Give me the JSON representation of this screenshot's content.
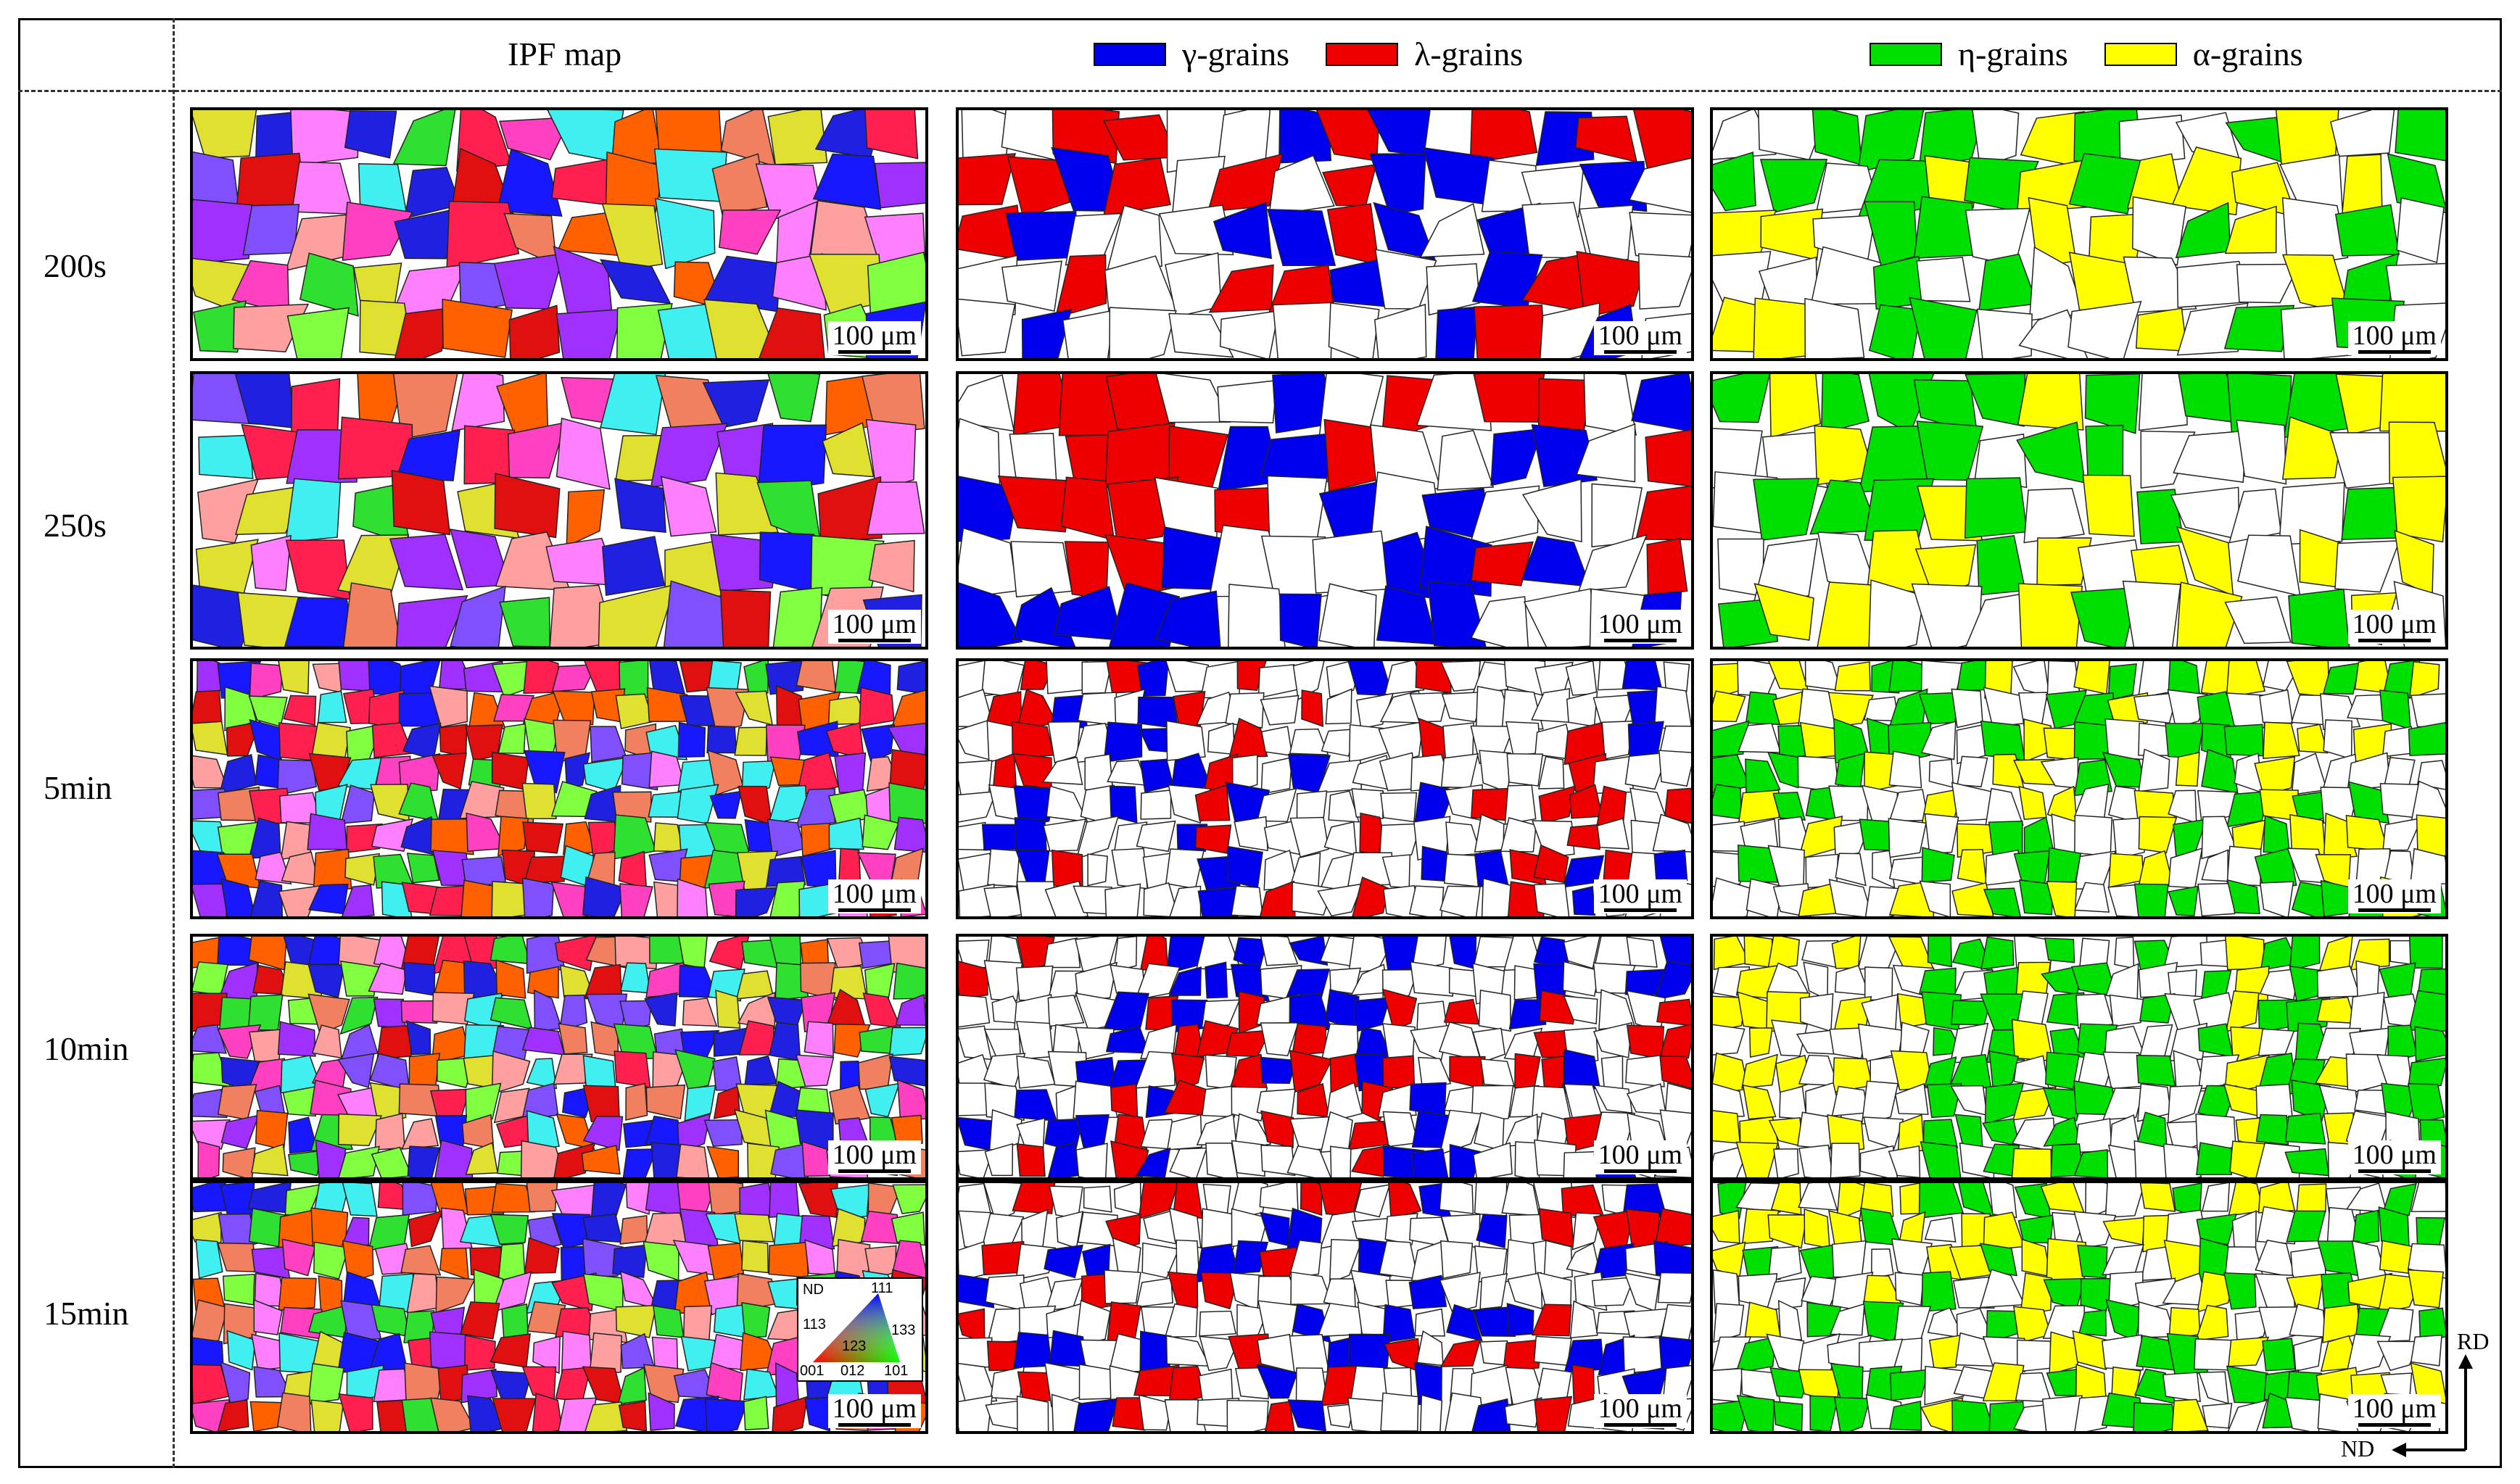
{
  "header": {
    "ipf_label": "IPF map",
    "legend_mid": [
      {
        "label": "γ-grains",
        "color": "#0000ee"
      },
      {
        "label": "λ-grains",
        "color": "#ee0000"
      }
    ],
    "legend_right": [
      {
        "label": "η-grains",
        "color": "#00e000"
      },
      {
        "label": "α-grains",
        "color": "#ffff00"
      }
    ]
  },
  "rows": [
    {
      "label": "200s"
    },
    {
      "label": "250s"
    },
    {
      "label": "5min"
    },
    {
      "label": "10min"
    },
    {
      "label": "15min"
    }
  ],
  "scale_bar": "100 μm",
  "ipf_key": {
    "title": "ND",
    "labels": {
      "p111": "111",
      "p113": "113",
      "p133": "133",
      "p123": "123",
      "p001": "001",
      "p012": "012",
      "p101": "101"
    }
  },
  "axes": {
    "vertical": "RD",
    "horizontal": "ND"
  },
  "colors": {
    "ipf": [
      "#e01010",
      "#ff2050",
      "#2020e0",
      "#1818ff",
      "#30e030",
      "#a030ff",
      "#ff40c0",
      "#e0e030",
      "#40f0f0",
      "#f08060",
      "#ff80ff",
      "#80ff40",
      "#ff6000",
      "#8050ff",
      "#ffa0a0"
    ],
    "gamma": "#0000ee",
    "lambda": "#ee0000",
    "eta": "#00e000",
    "alpha": "#ffff00"
  }
}
